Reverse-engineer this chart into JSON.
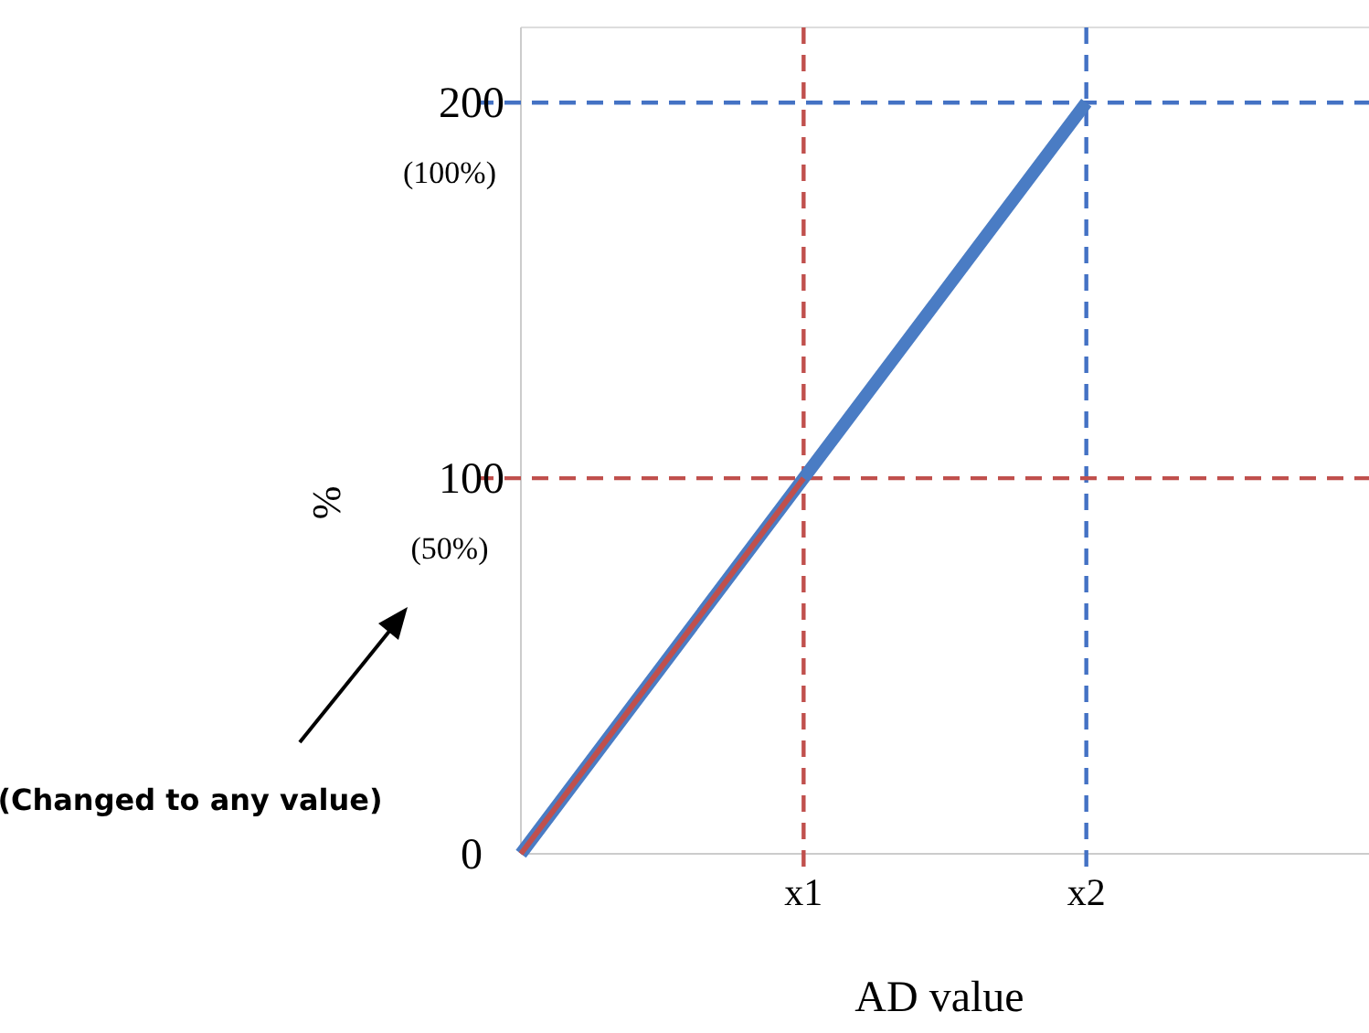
{
  "chart_data": {
    "type": "line",
    "xlabel": "AD value",
    "ylabel": "%",
    "categories": [
      null,
      "x1",
      "x2",
      null
    ],
    "ylim": [
      0,
      220
    ],
    "yticks": [
      0,
      100,
      200
    ],
    "series": [
      {
        "color": "#4a7cc4",
        "values": [
          0,
          100,
          200,
          null
        ]
      },
      {
        "color": "#c0504d",
        "values": [
          0,
          100,
          null,
          null
        ]
      }
    ],
    "ref_lines": [
      {
        "axis": "y",
        "value": 200,
        "color": "#4472c4",
        "line_style": "dashed"
      },
      {
        "axis": "x",
        "value": "x2",
        "color": "#4472c4",
        "line_style": "dashed"
      },
      {
        "axis": "y",
        "value": 100,
        "color": "#c0504d",
        "line_style": "dashed"
      },
      {
        "axis": "x",
        "value": "x1",
        "color": "#c0504d",
        "line_style": "dashed"
      }
    ],
    "annotations": [
      "(Changed to any value)",
      "(100%)",
      "(50%)"
    ]
  }
}
